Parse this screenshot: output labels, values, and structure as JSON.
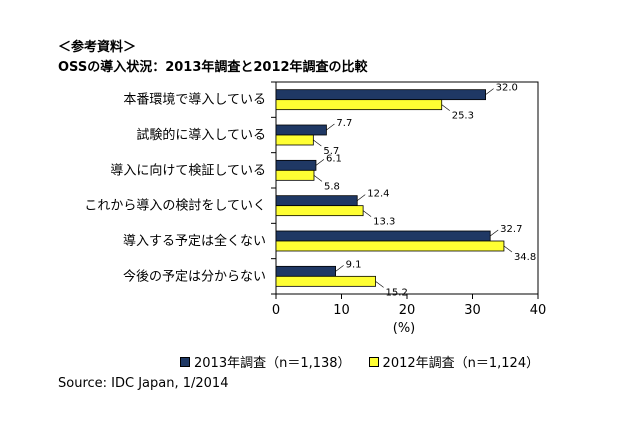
{
  "header": {
    "ref_label": "＜参考資料＞",
    "title": "OSSの導入状況：2013年調査と2012年調査の比較"
  },
  "chart_data": {
    "type": "bar",
    "orientation": "horizontal",
    "categories": [
      "本番環境で導入している",
      "試験的に導入している",
      "導入に向けて検証している",
      "これから導入の検討をしていく",
      "導入する予定は全くない",
      "今後の予定は分からない"
    ],
    "series": [
      {
        "name": "2013年調査（n＝1,138）",
        "values": [
          32.0,
          7.7,
          6.1,
          12.4,
          32.7,
          9.1
        ],
        "labels": [
          "32.0",
          "7.7",
          "6.1",
          "12.4",
          "32.7",
          "9.1"
        ],
        "color": "#1f3864"
      },
      {
        "name": "2012年調査（n＝1,124）",
        "values": [
          25.3,
          5.7,
          5.8,
          13.3,
          34.8,
          15.2
        ],
        "labels": [
          "25.3",
          "5.7",
          "5.8",
          "13.3",
          "34.8",
          "15.2"
        ],
        "color": "#ffff33"
      }
    ],
    "xlabel": "(%)",
    "xlim": [
      0,
      40
    ],
    "xticks": [
      "0",
      "10",
      "20",
      "30",
      "40"
    ],
    "legend_position": "bottom"
  },
  "source": "Source: IDC Japan, 1/2014"
}
